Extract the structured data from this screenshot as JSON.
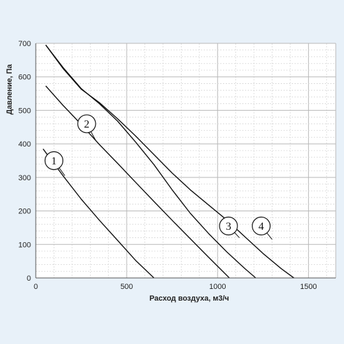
{
  "chart_data": {
    "type": "line",
    "xlabel": "Расход воздуха, м3/ч",
    "ylabel": "Давление, Па",
    "xlim": [
      0,
      1650
    ],
    "ylim": [
      0,
      700
    ],
    "x_ticks": [
      "0",
      "500",
      "1000",
      "1500"
    ],
    "y_ticks": [
      "0",
      "100",
      "200",
      "300",
      "400",
      "500",
      "600",
      "700"
    ],
    "grid": "major and minor",
    "background_color": "#ffffff",
    "line_color": "#111111",
    "series": [
      {
        "name": "1",
        "points": [
          [
            40,
            385
          ],
          [
            150,
            305
          ],
          [
            250,
            235
          ],
          [
            350,
            172
          ],
          [
            450,
            112
          ],
          [
            550,
            52
          ],
          [
            650,
            0
          ]
        ]
      },
      {
        "name": "2",
        "points": [
          [
            55,
            573
          ],
          [
            150,
            515
          ],
          [
            250,
            458
          ],
          [
            350,
            398
          ],
          [
            450,
            342
          ],
          [
            550,
            285
          ],
          [
            650,
            228
          ],
          [
            750,
            172
          ],
          [
            850,
            117
          ],
          [
            950,
            62
          ],
          [
            1050,
            8
          ],
          [
            1065,
            0
          ]
        ]
      },
      {
        "name": "3",
        "points": [
          [
            55,
            695
          ],
          [
            150,
            628
          ],
          [
            250,
            565
          ],
          [
            350,
            520
          ],
          [
            450,
            468
          ],
          [
            550,
            405
          ],
          [
            650,
            338
          ],
          [
            750,
            263
          ],
          [
            850,
            193
          ],
          [
            950,
            133
          ],
          [
            1050,
            78
          ],
          [
            1150,
            28
          ],
          [
            1210,
            0
          ]
        ]
      },
      {
        "name": "4",
        "points": [
          [
            55,
            695
          ],
          [
            150,
            625
          ],
          [
            250,
            563
          ],
          [
            350,
            523
          ],
          [
            450,
            475
          ],
          [
            550,
            423
          ],
          [
            650,
            368
          ],
          [
            750,
            313
          ],
          [
            850,
            263
          ],
          [
            950,
            218
          ],
          [
            1050,
            173
          ],
          [
            1150,
            123
          ],
          [
            1250,
            73
          ],
          [
            1350,
            28
          ],
          [
            1420,
            0
          ]
        ]
      }
    ],
    "label_markers": [
      {
        "text": "1",
        "x": 100,
        "y": 350,
        "leader_to": [
          160,
          305
        ]
      },
      {
        "text": "2",
        "x": 280,
        "y": 460,
        "leader_to": [
          330,
          410
        ]
      },
      {
        "text": "3",
        "x": 1060,
        "y": 155,
        "leader_to": [
          1120,
          120
        ]
      },
      {
        "text": "4",
        "x": 1240,
        "y": 155,
        "leader_to": [
          1300,
          115
        ]
      }
    ]
  }
}
